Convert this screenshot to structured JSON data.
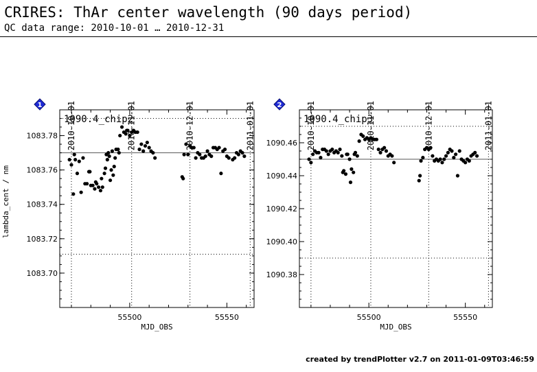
{
  "header": {
    "title": "CRIRES: ThAr center wavelength (90 days period)",
    "subtitle": "QC data range: 2010-10-01 … 2010-12-31"
  },
  "footer": {
    "text": "created by trendPlotter v2.7 on 2011-01-09T03:46:59"
  },
  "chart_data": [
    {
      "type": "scatter",
      "badge": "1",
      "panel_label": "1090.4_chip2",
      "xlabel": "MJD_OBS",
      "ylabel": "lambda_cent / nm",
      "xlim": [
        55464,
        55564
      ],
      "ylim": [
        1083.68,
        1083.795
      ],
      "x_ticks": [
        55500,
        55550
      ],
      "y_ticks": [
        1083.7,
        1083.72,
        1083.74,
        1083.76,
        1083.78
      ],
      "y_tick_labels": [
        "1083.70",
        "1083.72",
        "1083.74",
        "1083.76",
        "1083.78"
      ],
      "reference_line": 1083.77,
      "threshold_lines": [
        1083.79,
        1083.711
      ],
      "date_markers": [
        {
          "label": "2010-10-01",
          "x": 55470
        },
        {
          "label": "2010-11-01",
          "x": 55501
        },
        {
          "label": "2010-12-01",
          "x": 55531
        },
        {
          "label": "2011-01-01",
          "x": 55562
        }
      ],
      "points": [
        [
          55469,
          1083.766
        ],
        [
          55470,
          1083.763
        ],
        [
          55471,
          1083.746
        ],
        [
          55471.5,
          1083.769
        ],
        [
          55472,
          1083.766
        ],
        [
          55473,
          1083.758
        ],
        [
          55474,
          1083.765
        ],
        [
          55475,
          1083.747
        ],
        [
          55476,
          1083.767
        ],
        [
          55477,
          1083.752
        ],
        [
          55478,
          1083.752
        ],
        [
          55479,
          1083.759
        ],
        [
          55479.5,
          1083.759
        ],
        [
          55480,
          1083.751
        ],
        [
          55481,
          1083.751
        ],
        [
          55482,
          1083.749
        ],
        [
          55482.5,
          1083.753
        ],
        [
          55483,
          1083.752
        ],
        [
          55484,
          1083.75
        ],
        [
          55485,
          1083.748
        ],
        [
          55485.5,
          1083.755
        ],
        [
          55486,
          1083.75
        ],
        [
          55487,
          1083.758
        ],
        [
          55487.5,
          1083.761
        ],
        [
          55488,
          1083.769
        ],
        [
          55488.5,
          1083.766
        ],
        [
          55489,
          1083.77
        ],
        [
          55489.5,
          1083.768
        ],
        [
          55490,
          1083.754
        ],
        [
          55490.5,
          1083.76
        ],
        [
          55491,
          1083.771
        ],
        [
          55491.5,
          1083.757
        ],
        [
          55492,
          1083.762
        ],
        [
          55492.5,
          1083.767
        ],
        [
          55493,
          1083.772
        ],
        [
          55494,
          1083.772
        ],
        [
          55494.5,
          1083.77
        ],
        [
          55495,
          1083.78
        ],
        [
          55496,
          1083.785
        ],
        [
          55497,
          1083.782
        ],
        [
          55498,
          1083.781
        ],
        [
          55498.5,
          1083.783
        ],
        [
          55499,
          1083.783
        ],
        [
          55500,
          1083.78
        ],
        [
          55501,
          1083.782
        ],
        [
          55502,
          1083.783
        ],
        [
          55503,
          1083.782
        ],
        [
          55504,
          1083.782
        ],
        [
          55505,
          1083.772
        ],
        [
          55506,
          1083.775
        ],
        [
          55507,
          1083.771
        ],
        [
          55508,
          1083.774
        ],
        [
          55509,
          1083.776
        ],
        [
          55510,
          1083.773
        ],
        [
          55511,
          1083.771
        ],
        [
          55512,
          1083.77
        ],
        [
          55513,
          1083.767
        ],
        [
          55527,
          1083.756
        ],
        [
          55527.5,
          1083.755
        ],
        [
          55528,
          1083.769
        ],
        [
          55529,
          1083.775
        ],
        [
          55530,
          1083.769
        ],
        [
          55531,
          1083.774
        ],
        [
          55532,
          1083.773
        ],
        [
          55533,
          1083.773
        ],
        [
          55534,
          1083.767
        ],
        [
          55535,
          1083.77
        ],
        [
          55536,
          1083.769
        ],
        [
          55537,
          1083.767
        ],
        [
          55538,
          1083.767
        ],
        [
          55539,
          1083.768
        ],
        [
          55540,
          1083.771
        ],
        [
          55541,
          1083.769
        ],
        [
          55542,
          1083.768
        ],
        [
          55543,
          1083.773
        ],
        [
          55544,
          1083.773
        ],
        [
          55545,
          1083.772
        ],
        [
          55546,
          1083.773
        ],
        [
          55547,
          1083.758
        ],
        [
          55548,
          1083.771
        ],
        [
          55549,
          1083.772
        ],
        [
          55550,
          1083.768
        ],
        [
          55551,
          1083.767
        ],
        [
          55553,
          1083.766
        ],
        [
          55554,
          1083.767
        ],
        [
          55555,
          1083.77
        ],
        [
          55556,
          1083.769
        ],
        [
          55557,
          1083.771
        ],
        [
          55558,
          1083.77
        ],
        [
          55559,
          1083.768
        ]
      ]
    },
    {
      "type": "scatter",
      "badge": "2",
      "panel_label": "1090.4_chip3",
      "xlabel": "MJD_OBS",
      "ylabel": "",
      "xlim": [
        55464,
        55564
      ],
      "ylim": [
        1090.36,
        1090.48
      ],
      "x_ticks": [
        55500,
        55550
      ],
      "y_ticks": [
        1090.38,
        1090.4,
        1090.42,
        1090.44,
        1090.46
      ],
      "y_tick_labels": [
        "1090.38",
        "1090.40",
        "1090.42",
        "1090.44",
        "1090.46"
      ],
      "reference_line": 1090.45,
      "threshold_lines": [
        1090.47,
        1090.39
      ],
      "date_markers": [
        {
          "label": "2010-10-01",
          "x": 55470
        },
        {
          "label": "2010-11-01",
          "x": 55501
        },
        {
          "label": "2010-12-01",
          "x": 55531
        },
        {
          "label": "2011-01-01",
          "x": 55562
        }
      ],
      "points": [
        [
          55469,
          1090.45
        ],
        [
          55470,
          1090.448
        ],
        [
          55471,
          1090.453
        ],
        [
          55472,
          1090.455
        ],
        [
          55473,
          1090.454
        ],
        [
          55474,
          1090.454
        ],
        [
          55475,
          1090.451
        ],
        [
          55476,
          1090.456
        ],
        [
          55477,
          1090.456
        ],
        [
          55478,
          1090.455
        ],
        [
          55479,
          1090.453
        ],
        [
          55480,
          1090.455
        ],
        [
          55481,
          1090.456
        ],
        [
          55482,
          1090.454
        ],
        [
          55483,
          1090.455
        ],
        [
          55484,
          1090.454
        ],
        [
          55485,
          1090.456
        ],
        [
          55486,
          1090.452
        ],
        [
          55486.5,
          1090.442
        ],
        [
          55487,
          1090.443
        ],
        [
          55488,
          1090.441
        ],
        [
          55488.5,
          1090.453
        ],
        [
          55489,
          1090.453
        ],
        [
          55490,
          1090.45
        ],
        [
          55490.5,
          1090.436
        ],
        [
          55491,
          1090.444
        ],
        [
          55492,
          1090.442
        ],
        [
          55492.5,
          1090.453
        ],
        [
          55493,
          1090.454
        ],
        [
          55494,
          1090.452
        ],
        [
          55495,
          1090.461
        ],
        [
          55496,
          1090.465
        ],
        [
          55497,
          1090.464
        ],
        [
          55498,
          1090.462
        ],
        [
          55499,
          1090.463
        ],
        [
          55500,
          1090.462
        ],
        [
          55501,
          1090.463
        ],
        [
          55502,
          1090.462
        ],
        [
          55503,
          1090.462
        ],
        [
          55504,
          1090.462
        ],
        [
          55505,
          1090.456
        ],
        [
          55506,
          1090.454
        ],
        [
          55507,
          1090.456
        ],
        [
          55508,
          1090.457
        ],
        [
          55509,
          1090.455
        ],
        [
          55510,
          1090.452
        ],
        [
          55511,
          1090.453
        ],
        [
          55512,
          1090.452
        ],
        [
          55513,
          1090.448
        ],
        [
          55526,
          1090.437
        ],
        [
          55526.5,
          1090.44
        ],
        [
          55527,
          1090.449
        ],
        [
          55528,
          1090.451
        ],
        [
          55529,
          1090.456
        ],
        [
          55530,
          1090.457
        ],
        [
          55531,
          1090.456
        ],
        [
          55532,
          1090.457
        ],
        [
          55533,
          1090.452
        ],
        [
          55534,
          1090.449
        ],
        [
          55535,
          1090.45
        ],
        [
          55536,
          1090.449
        ],
        [
          55537,
          1090.45
        ],
        [
          55538,
          1090.448
        ],
        [
          55539,
          1090.45
        ],
        [
          55540,
          1090.452
        ],
        [
          55541,
          1090.454
        ],
        [
          55542,
          1090.456
        ],
        [
          55543,
          1090.455
        ],
        [
          55544,
          1090.451
        ],
        [
          55545,
          1090.453
        ],
        [
          55546,
          1090.44
        ],
        [
          55547,
          1090.455
        ],
        [
          55548,
          1090.45
        ],
        [
          55549,
          1090.449
        ],
        [
          55550,
          1090.448
        ],
        [
          55551,
          1090.45
        ],
        [
          55552,
          1090.449
        ],
        [
          55553,
          1090.452
        ],
        [
          55554,
          1090.453
        ],
        [
          55555,
          1090.454
        ],
        [
          55556,
          1090.452
        ]
      ]
    }
  ]
}
